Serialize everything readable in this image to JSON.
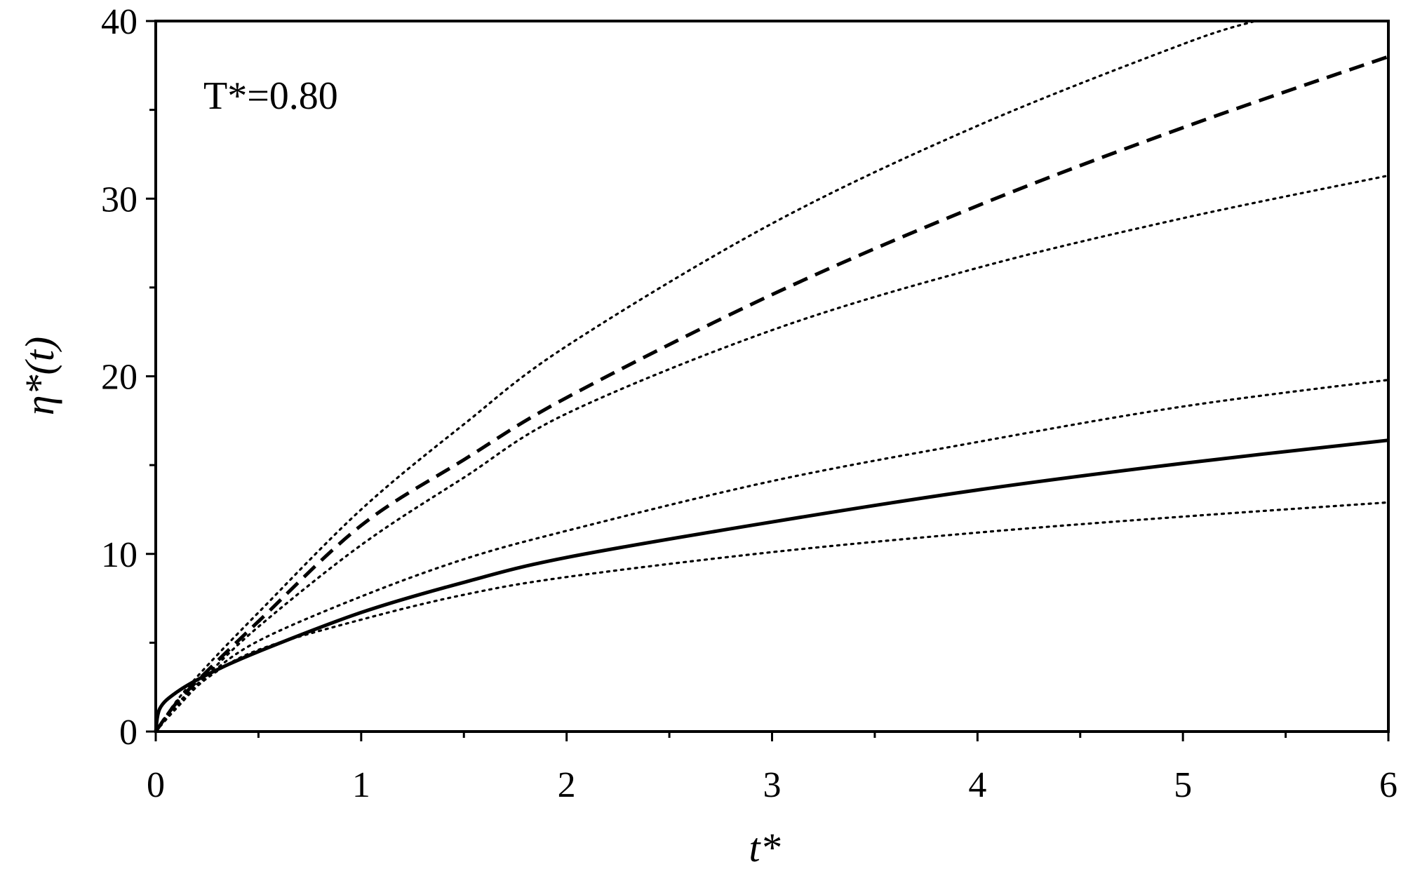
{
  "chart_data": {
    "type": "line",
    "xlabel": "t*",
    "ylabel": "η*(t)",
    "annotation": "T*=0.80",
    "xlim": [
      0,
      6
    ],
    "ylim": [
      0,
      40
    ],
    "x_ticks": [
      "0",
      "1",
      "2",
      "3",
      "4",
      "5",
      "6"
    ],
    "y_ticks": [
      "0",
      "10",
      "20",
      "30",
      "40"
    ],
    "x_minor_step": 0.5,
    "y_minor_step": 5,
    "grid": false,
    "series": [
      {
        "style": "solid",
        "x": [
          0,
          0.02,
          0.1,
          0.25,
          0.5,
          1,
          1.5,
          2,
          3,
          4,
          5,
          6
        ],
        "y": [
          0,
          1.3,
          2.2,
          3.2,
          4.5,
          6.7,
          8.4,
          9.8,
          11.8,
          13.6,
          15.1,
          16.4
        ]
      },
      {
        "style": "dashed",
        "x": [
          0,
          0.1,
          0.25,
          0.5,
          1,
          1.5,
          2,
          3,
          4,
          5,
          6
        ],
        "y": [
          0,
          1.6,
          3.4,
          6.2,
          11.6,
          15.3,
          18.8,
          24.6,
          29.6,
          34.0,
          38.0
        ]
      },
      {
        "style": "dotted",
        "x": [
          0,
          0.1,
          0.25,
          0.5,
          1,
          1.5,
          2,
          3,
          4,
          5,
          5.35
        ],
        "y": [
          0,
          1.7,
          3.7,
          6.7,
          12.5,
          17.3,
          21.7,
          28.6,
          34.1,
          38.7,
          40.0
        ]
      },
      {
        "style": "dotted",
        "x": [
          0,
          0.1,
          0.25,
          0.5,
          1,
          1.5,
          2,
          3,
          4,
          5,
          6
        ],
        "y": [
          0,
          1.5,
          3.2,
          5.9,
          10.5,
          14.3,
          17.9,
          22.6,
          26.1,
          28.9,
          31.3
        ]
      },
      {
        "style": "dotted",
        "x": [
          0,
          0.1,
          0.25,
          0.5,
          1,
          1.5,
          2,
          3,
          4,
          5,
          6
        ],
        "y": [
          0,
          1.4,
          3.1,
          5.1,
          7.6,
          9.7,
          11.3,
          14.1,
          16.3,
          18.3,
          19.8
        ]
      },
      {
        "style": "dotted",
        "x": [
          0,
          0.1,
          0.25,
          0.5,
          1,
          1.5,
          2,
          3,
          4,
          5,
          6
        ],
        "y": [
          0,
          1.3,
          3.0,
          4.6,
          6.3,
          7.7,
          8.7,
          10.1,
          11.2,
          12.1,
          12.9
        ]
      }
    ]
  }
}
